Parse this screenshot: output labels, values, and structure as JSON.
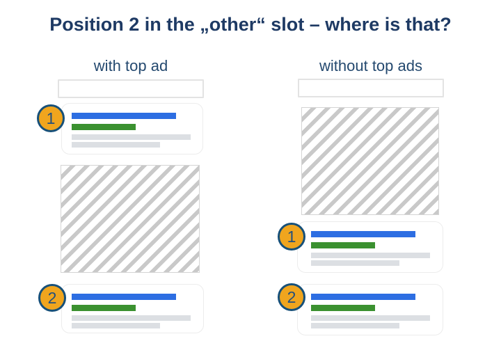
{
  "title": "Position 2 in the „other“ slot – where is that?",
  "columns": [
    {
      "header": "with top ad",
      "layout_order": [
        "search-box",
        "result-1",
        "ad-placeholder",
        "result-2"
      ],
      "results": [
        {
          "badge": "1"
        },
        {
          "badge": "2"
        }
      ]
    },
    {
      "header": "without top ads",
      "layout_order": [
        "search-box",
        "ad-placeholder",
        "result-1",
        "result-2"
      ],
      "results": [
        {
          "badge": "1"
        },
        {
          "badge": "2"
        }
      ]
    }
  ],
  "colors": {
    "background": "#ffffff",
    "title_text": "#1e3a64",
    "header_text": "#24496f",
    "badge_fill": "#f0a51e",
    "badge_border": "#175079",
    "badge_text": "#24507c",
    "result_title_bar": "#2d6ee2",
    "result_url_bar": "#3b9130",
    "result_text_line": "#dcdfe3",
    "ad_hatch_stripe": "#c9c9c9",
    "ad_box_border": "#d4d4d4",
    "search_box_border": "#e3e3e3",
    "card_border": "#ececec"
  }
}
